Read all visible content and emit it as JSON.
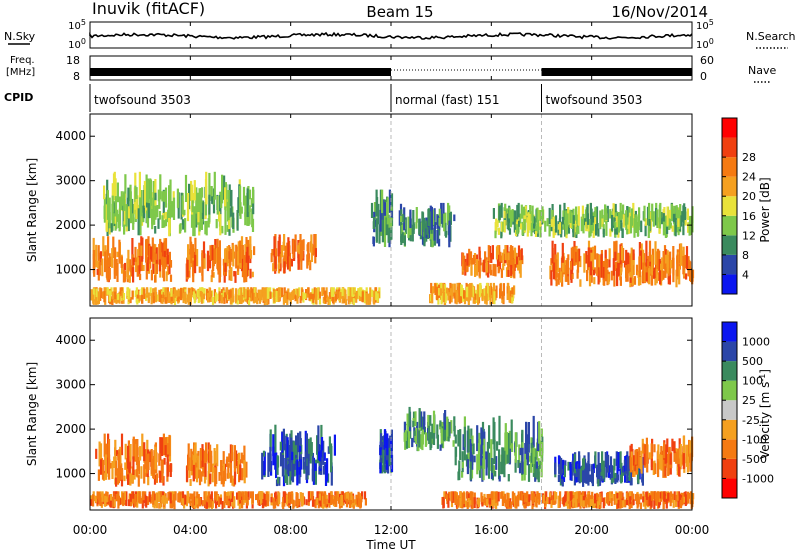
{
  "header": {
    "station": "Inuvik (fitACF)",
    "beam": "Beam 15",
    "date": "16/Nov/2014"
  },
  "labels": {
    "nsky": "N.Sky",
    "freq_line1": "Freq.",
    "freq_line2": "[MHz]",
    "cpid": "CPID",
    "nsearch": "N.Search",
    "nave": "Nave",
    "nsky_ticks": [
      "10^5",
      "10^0"
    ],
    "nsearch_ticks": [
      "10^5",
      "10^0"
    ],
    "freq_ticks": [
      "18",
      "8"
    ],
    "nave_ticks": [
      "60",
      "0"
    ]
  },
  "cpid_segments": [
    {
      "name": "twofsound 3503",
      "start_hour": 0,
      "end_hour": 12
    },
    {
      "name": "normal (fast) 151",
      "start_hour": 12,
      "end_hour": 18
    },
    {
      "name": "twofsound 3503",
      "start_hour": 18,
      "end_hour": 24
    }
  ],
  "colors": {
    "power": [
      "#0b16f0",
      "#2b46a8",
      "#3a8a5e",
      "#7ec84a",
      "#e9e23a",
      "#f5a020",
      "#f57a12",
      "#f04010",
      "#ff0000"
    ],
    "velocity": [
      "#ff0000",
      "#f04010",
      "#f57a12",
      "#f5a020",
      "#c8c8c8",
      "#7ec84a",
      "#3a8a5e",
      "#2b46a8",
      "#0b16f0"
    ]
  },
  "chart_data": [
    {
      "type": "heatmap",
      "quantity": "power",
      "title": "",
      "xlabel": "Time UT",
      "ylabel": "Slant Range [km]",
      "colorbar_label": "Power [dB]",
      "colorbar_ticks": [
        4,
        8,
        12,
        16,
        20,
        24,
        28
      ],
      "x_ticks": [
        "00:00",
        "04:00",
        "08:00",
        "12:00",
        "16:00",
        "20:00",
        "00:00"
      ],
      "y_ticks": [
        1000,
        2000,
        3000,
        4000
      ],
      "xlim": [
        0,
        24
      ],
      "ylim": [
        180,
        4500
      ],
      "grid": false,
      "blobs": [
        {
          "t0": 0.1,
          "t1": 3.2,
          "r0": 700,
          "r1": 1750,
          "value": 26
        },
        {
          "t0": 3.8,
          "t1": 6.5,
          "r0": 700,
          "r1": 1750,
          "value": 26
        },
        {
          "t0": 7.2,
          "t1": 9.0,
          "r0": 900,
          "r1": 1800,
          "value": 24
        },
        {
          "t0": 14.8,
          "t1": 17.2,
          "r0": 800,
          "r1": 1550,
          "value": 27
        },
        {
          "t0": 18.3,
          "t1": 24.0,
          "r0": 600,
          "r1": 1650,
          "value": 26
        },
        {
          "t0": 0.0,
          "t1": 11.5,
          "r0": 200,
          "r1": 600,
          "value": 22
        },
        {
          "t0": 13.5,
          "t1": 17.0,
          "r0": 200,
          "r1": 700,
          "value": 20
        },
        {
          "t0": 0.5,
          "t1": 6.5,
          "r0": 1750,
          "r1": 3200,
          "value": 12
        },
        {
          "t0": 12.3,
          "t1": 14.5,
          "r0": 1500,
          "r1": 2500,
          "value": 8
        },
        {
          "t0": 11.2,
          "t1": 12.0,
          "r0": 1500,
          "r1": 2800,
          "value": 10
        },
        {
          "t0": 16.0,
          "t1": 24.0,
          "r0": 1700,
          "r1": 2500,
          "value": 12
        }
      ]
    },
    {
      "type": "heatmap",
      "quantity": "velocity",
      "title": "",
      "xlabel": "Time UT",
      "ylabel": "Slant Range [km]",
      "colorbar_label": "Velocity [m s^-1]",
      "colorbar_ticks": [
        -1000,
        -500,
        -100,
        -25,
        25,
        100,
        500,
        1000
      ],
      "x_ticks": [
        "00:00",
        "04:00",
        "08:00",
        "12:00",
        "16:00",
        "20:00",
        "00:00"
      ],
      "y_ticks": [
        1000,
        2000,
        3000,
        4000
      ],
      "xlim": [
        0,
        24
      ],
      "ylim": [
        180,
        4500
      ],
      "grid": false,
      "blobs": [
        {
          "t0": 0.2,
          "t1": 3.2,
          "r0": 700,
          "r1": 1900,
          "value": -250
        },
        {
          "t0": 3.8,
          "t1": 6.2,
          "r0": 700,
          "r1": 1700,
          "value": -200
        },
        {
          "t0": 6.8,
          "t1": 9.8,
          "r0": 700,
          "r1": 2100,
          "value": 600
        },
        {
          "t0": 11.5,
          "t1": 12.0,
          "r0": 1000,
          "r1": 2000,
          "value": 800
        },
        {
          "t0": 12.5,
          "t1": 14.5,
          "r0": 1500,
          "r1": 2500,
          "value": 400
        },
        {
          "t0": 14.5,
          "t1": 18.0,
          "r0": 800,
          "r1": 2300,
          "value": 150
        },
        {
          "t0": 18.5,
          "t1": 22.0,
          "r0": 700,
          "r1": 1500,
          "value": 700
        },
        {
          "t0": 21.5,
          "t1": 24.0,
          "r0": 900,
          "r1": 1900,
          "value": -300
        },
        {
          "t0": 0.0,
          "t1": 11.0,
          "r0": 200,
          "r1": 600,
          "value": -150
        },
        {
          "t0": 14.0,
          "t1": 24.0,
          "r0": 200,
          "r1": 600,
          "value": -100
        }
      ]
    }
  ]
}
